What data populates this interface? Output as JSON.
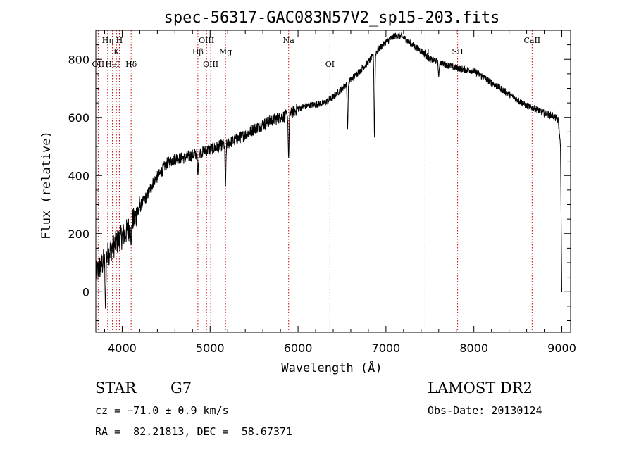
{
  "chart_data": {
    "type": "line",
    "title": "spec-56317-GAC083N57V2_sp15-203.fits",
    "xlabel": "Wavelength (Å)",
    "ylabel": "Flux (relative)",
    "xlim": [
      3700,
      9100
    ],
    "ylim": [
      -140,
      900
    ],
    "xticks": [
      4000,
      5000,
      6000,
      7000,
      8000,
      9000
    ],
    "yticks": [
      0,
      200,
      400,
      600,
      800
    ],
    "xtick_labels": [
      "4000",
      "5000",
      "6000",
      "7000",
      "8000",
      "9000"
    ],
    "ytick_labels": [
      "0",
      "200",
      "400",
      "600",
      "800"
    ],
    "grid": false,
    "line_color": "#000000",
    "marker_color": "#cc0000",
    "series": [
      {
        "name": "",
        "x": [
          3700,
          3760,
          3820,
          3880,
          3940,
          4000,
          4060,
          4120,
          4200,
          4280,
          4360,
          4440,
          4500,
          4560,
          4620,
          4700,
          4800,
          4900,
          5000,
          5100,
          5200,
          5300,
          5400,
          5500,
          5600,
          5700,
          5800,
          5900,
          6000,
          6100,
          6200,
          6300,
          6400,
          6500,
          6600,
          6700,
          6800,
          6900,
          7000,
          7100,
          7150,
          7200,
          7300,
          7400,
          7500,
          7600,
          7700,
          7800,
          7900,
          8000,
          8100,
          8200,
          8300,
          8400,
          8500,
          8600,
          8700,
          8800,
          8900,
          8960,
          8985,
          9000
        ],
        "y": [
          60,
          90,
          120,
          150,
          170,
          190,
          210,
          240,
          290,
          330,
          380,
          410,
          440,
          450,
          460,
          460,
          470,
          480,
          490,
          500,
          510,
          525,
          540,
          560,
          575,
          590,
          600,
          610,
          630,
          640,
          645,
          650,
          670,
          700,
          730,
          760,
          790,
          830,
          860,
          880,
          880,
          875,
          850,
          830,
          800,
          790,
          780,
          770,
          765,
          760,
          740,
          720,
          700,
          680,
          660,
          640,
          630,
          615,
          605,
          590,
          500,
          0
        ]
      }
    ],
    "absorption_dips": [
      {
        "x": 3810,
        "y": -60
      },
      {
        "x": 4101,
        "y": 160
      },
      {
        "x": 4861,
        "y": 400
      },
      {
        "x": 5175,
        "y": 360
      },
      {
        "x": 5893,
        "y": 460
      },
      {
        "x": 6563,
        "y": 560
      },
      {
        "x": 6870,
        "y": 530
      },
      {
        "x": 7600,
        "y": 740
      }
    ],
    "spectral_lines": [
      {
        "label": "Hη",
        "x": 3835,
        "row": 1
      },
      {
        "label": "H",
        "x": 3968,
        "row": 1
      },
      {
        "label": "K",
        "x": 3934,
        "row": 2
      },
      {
        "label": "OII",
        "x": 3727,
        "row": 3
      },
      {
        "label": "HeI",
        "x": 3889,
        "row": 3
      },
      {
        "label": "Hδ",
        "x": 4102,
        "row": 3
      },
      {
        "label": "OIII",
        "x": 4959,
        "row": 1
      },
      {
        "label": "Hβ",
        "x": 4861,
        "row": 2
      },
      {
        "label": "OIII",
        "x": 5007,
        "row": 3
      },
      {
        "label": "Mg",
        "x": 5175,
        "row": 2
      },
      {
        "label": "Na",
        "x": 5893,
        "row": 1
      },
      {
        "label": "OI",
        "x": 6363,
        "row": 3
      },
      {
        "label": "OI",
        "x": 7445,
        "row": 2
      },
      {
        "label": "SII",
        "x": 7815,
        "row": 2
      },
      {
        "label": "CaII",
        "x": 8662,
        "row": 1
      }
    ]
  },
  "info": {
    "object_class": "STAR",
    "subclass": "G7",
    "cz": "cz = −71.0 ± 0.9 km/s",
    "coords": "RA =  82.21813, DEC =  58.67371",
    "survey": "LAMOST DR2",
    "obs_date": "Obs-Date: 20130124"
  }
}
